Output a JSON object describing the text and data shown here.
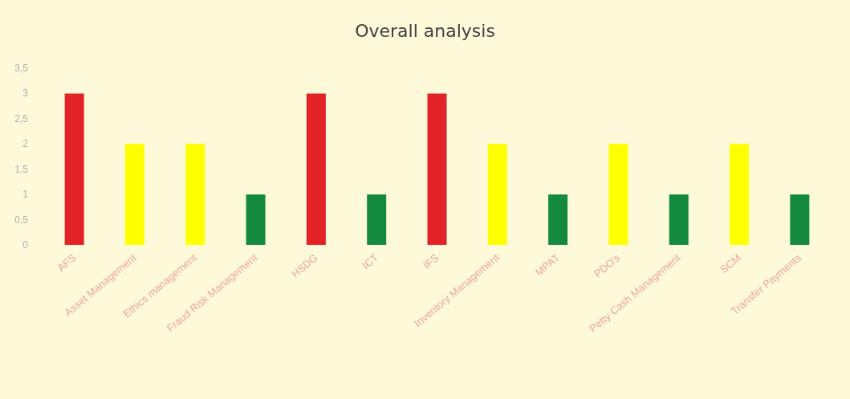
{
  "chart_data": {
    "type": "bar",
    "title": "Overall analysis",
    "categories": [
      "AFS",
      "Asset Management",
      "Ethics management",
      "Fraud Risk Management",
      "HSDG",
      "ICT",
      "IFS",
      "Inventory Management",
      "MPAT",
      "PDO's",
      "Petty Cash Management",
      "SCM",
      "Transfer Payments"
    ],
    "values": [
      3,
      2,
      2,
      1,
      3,
      1,
      3,
      2,
      1,
      2,
      1,
      2,
      1
    ],
    "colors": [
      "#e32228",
      "#ffff00",
      "#ffff00",
      "#138a3e",
      "#e32228",
      "#138a3e",
      "#e32228",
      "#ffff00",
      "#138a3e",
      "#ffff00",
      "#138a3e",
      "#ffff00",
      "#138a3e"
    ],
    "ylim": [
      0,
      3.5
    ],
    "yticks": [
      0,
      {
        "value": 0.5,
        "label": "0,5"
      },
      1,
      {
        "value": 1.5,
        "label": "1,5"
      },
      2,
      {
        "value": 2.5,
        "label": "2,5"
      },
      3,
      {
        "value": 3.5,
        "label": "3,5"
      }
    ],
    "grid": false
  }
}
